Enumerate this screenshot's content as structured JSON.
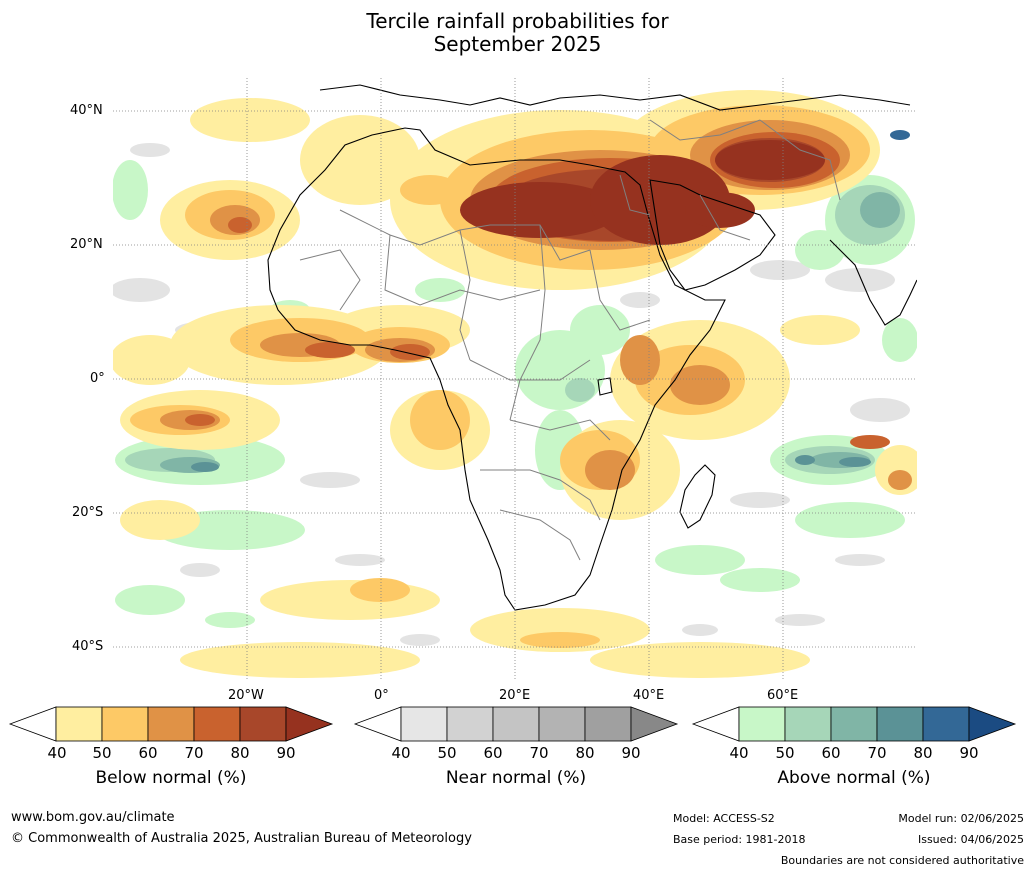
{
  "title": {
    "line1": "Tercile rainfall probabilities for",
    "line2": "September 2025"
  },
  "map": {
    "lat_labels": [
      "40°N",
      "20°N",
      "0°",
      "20°S",
      "40°S"
    ],
    "lon_labels": [
      "20°W",
      "0°",
      "20°E",
      "40°E",
      "60°E"
    ],
    "colors": {
      "below": [
        "#ffeea0",
        "#fdc966",
        "#e09246",
        "#c9622e",
        "#a8472a",
        "#96321f"
      ],
      "near": [
        "#e6e6e6",
        "#d2d2d2",
        "#c4c4c4",
        "#b3b3b3",
        "#a0a0a0",
        "#888888"
      ],
      "above": [
        "#c8f7c8",
        "#a6d6b8",
        "#80b5a6",
        "#5b9296",
        "#336896",
        "#1b4b82"
      ]
    }
  },
  "colorbars": [
    {
      "name": "Below normal (%)",
      "ticks": [
        "40",
        "50",
        "60",
        "70",
        "80",
        "90"
      ]
    },
    {
      "name": "Near normal (%)",
      "ticks": [
        "40",
        "50",
        "60",
        "70",
        "80",
        "90"
      ]
    },
    {
      "name": "Above normal (%)",
      "ticks": [
        "40",
        "50",
        "60",
        "70",
        "80",
        "90"
      ]
    }
  ],
  "footer": {
    "website": "www.bom.gov.au/climate",
    "copyright": "© Commonwealth of Australia 2025, Australian Bureau of Meteorology",
    "model": "Model: ACCESS-S2",
    "base_period": "Base period: 1981-2018",
    "model_run": "Model run: 02/06/2025",
    "issued": "Issued: 04/06/2025",
    "disclaimer": "Boundaries are not considered authoritative"
  }
}
